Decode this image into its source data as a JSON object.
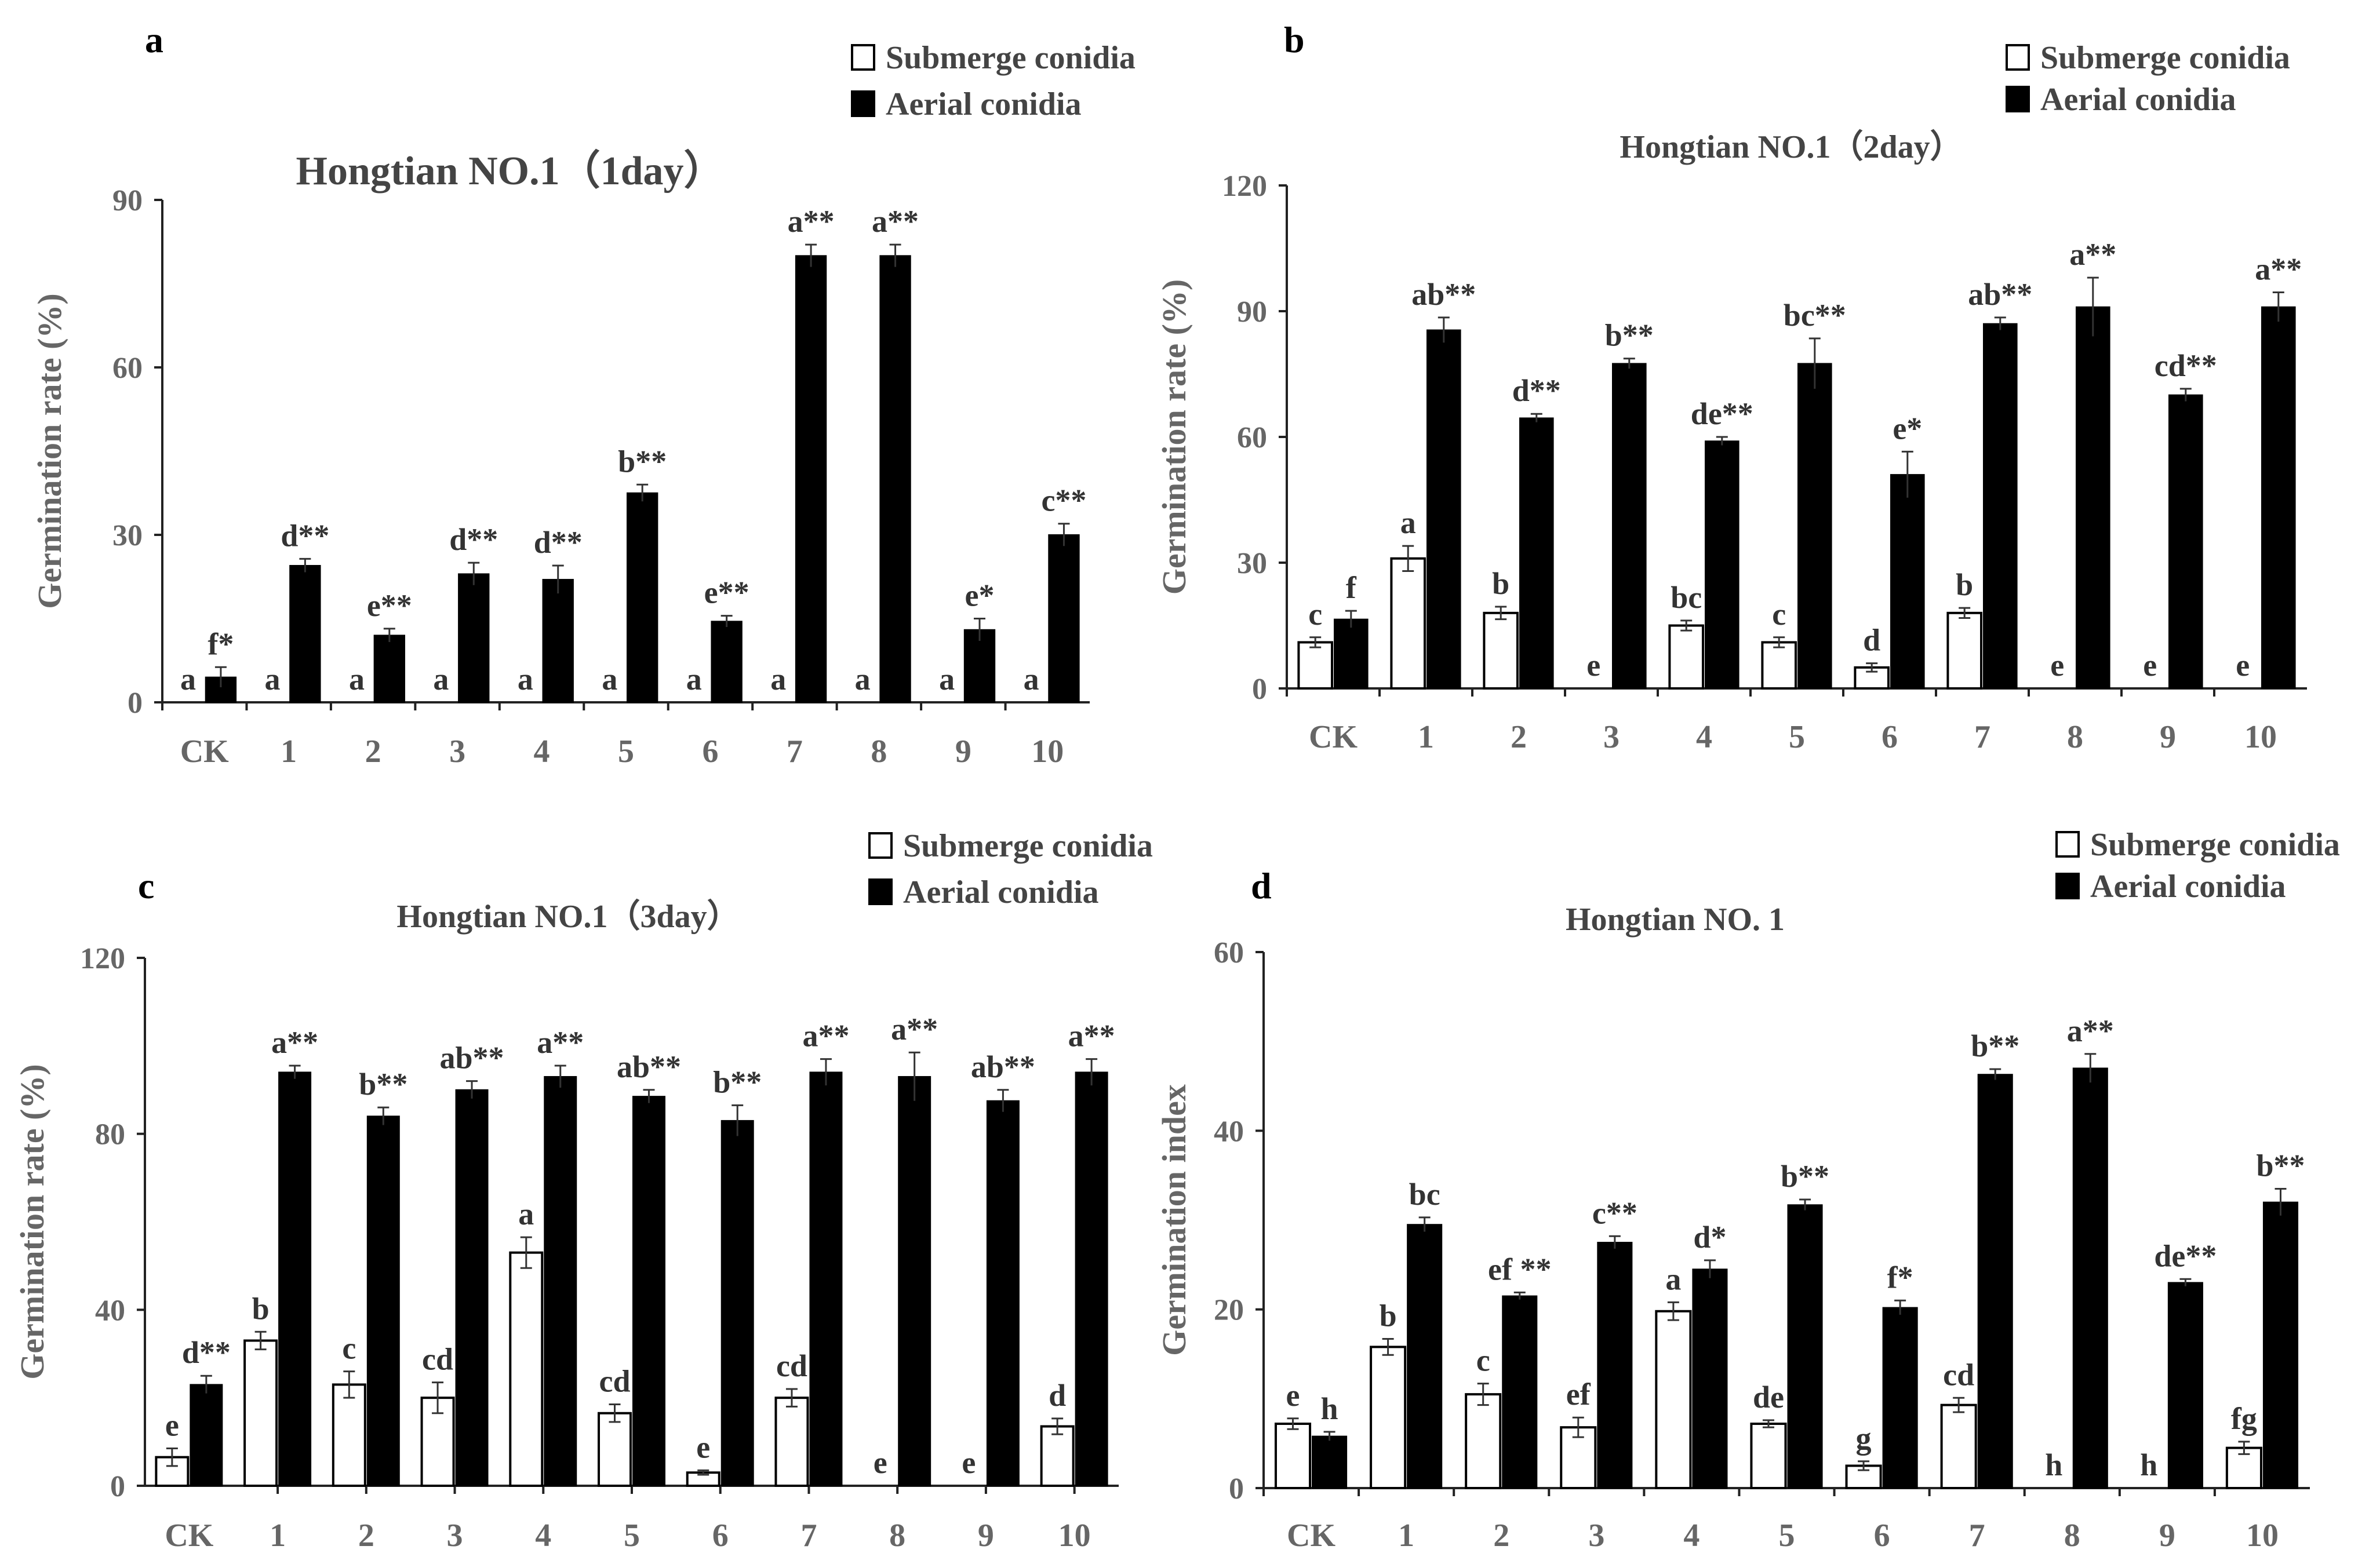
{
  "chart_data": [
    {
      "panel": "a",
      "type": "bar",
      "title": "Hongtian NO.1（1day）",
      "xlabel": "",
      "ylabel": "Germination rate (%)",
      "ylim": [
        0,
        90
      ],
      "yticks": [
        "0",
        "30",
        "60",
        "90"
      ],
      "ytick_values": [
        0,
        30,
        60,
        90
      ],
      "legend_position": "top-right",
      "categories": [
        "CK",
        "1",
        "2",
        "3",
        "4",
        "5",
        "6",
        "7",
        "8",
        "9",
        "10"
      ],
      "series": [
        {
          "name": "Submerge conidia",
          "color": "#ffffff",
          "values": [
            0,
            0,
            0,
            0,
            0,
            0,
            0,
            0,
            0,
            0,
            0
          ],
          "errors": [
            0,
            0,
            0,
            0,
            0,
            0,
            0,
            0,
            0,
            0,
            0
          ],
          "labels": [
            "a",
            "a",
            "a",
            "a",
            "a",
            "a",
            "a",
            "a",
            "a",
            "a",
            "a"
          ]
        },
        {
          "name": "Aerial conidia",
          "color": "#000000",
          "values": [
            4.5,
            24.5,
            12,
            23,
            22,
            37.5,
            14.5,
            80,
            80,
            13,
            30
          ],
          "errors": [
            1.8,
            1.2,
            1.2,
            2.0,
            2.5,
            1.5,
            1.0,
            2.0,
            2.0,
            2.0,
            2.0
          ],
          "labels": [
            "f*",
            "d**",
            "e**",
            "d**",
            "d**",
            "b**",
            "e**",
            "a**",
            "a**",
            "e*",
            "c**"
          ]
        }
      ]
    },
    {
      "panel": "b",
      "type": "bar",
      "title": "Hongtian NO.1（2day）",
      "xlabel": "",
      "ylabel": "Germination rate (%)",
      "ylim": [
        0,
        120
      ],
      "yticks": [
        "0",
        "30",
        "60",
        "90",
        "120"
      ],
      "ytick_values": [
        0,
        30,
        60,
        90,
        120
      ],
      "legend_position": "top-right",
      "categories": [
        "CK",
        "1",
        "2",
        "3",
        "4",
        "5",
        "6",
        "7",
        "8",
        "9",
        "10"
      ],
      "series": [
        {
          "name": "Submerge conidia",
          "color": "#ffffff",
          "values": [
            11,
            31,
            18,
            0,
            15,
            11,
            5,
            18,
            0,
            0,
            0
          ],
          "errors": [
            1.2,
            3.0,
            1.5,
            0,
            1.2,
            1.2,
            1.0,
            1.2,
            0,
            0,
            0
          ],
          "labels": [
            "c",
            "a",
            "b",
            "e",
            "bc",
            "c",
            "d",
            "b",
            "e",
            "e",
            "e"
          ]
        },
        {
          "name": "Aerial conidia",
          "color": "#000000",
          "values": [
            16.5,
            85.5,
            64.5,
            77.5,
            59,
            77.5,
            51,
            87,
            91,
            70,
            91
          ],
          "errors": [
            2.0,
            3.0,
            1.0,
            1.2,
            1.0,
            6.0,
            5.5,
            1.5,
            7.0,
            1.5,
            3.5
          ],
          "labels": [
            "f",
            "ab**",
            "d**",
            "b**",
            "de**",
            "bc**",
            "e*",
            "ab**",
            "a**",
            "cd**",
            "a**"
          ]
        }
      ]
    },
    {
      "panel": "c",
      "type": "bar",
      "title": "Hongtian NO.1（3day）",
      "xlabel": "",
      "ylabel": "Germination rate (%)",
      "ylim": [
        0,
        120
      ],
      "yticks": [
        "0",
        "40",
        "80",
        "120"
      ],
      "ytick_values": [
        0,
        40,
        80,
        120
      ],
      "legend_position": "top-right",
      "categories": [
        "CK",
        "1",
        "2",
        "3",
        "4",
        "5",
        "6",
        "7",
        "8",
        "9",
        "10"
      ],
      "series": [
        {
          "name": "Submerge conidia",
          "color": "#ffffff",
          "values": [
            6.5,
            33,
            23,
            20,
            53,
            16.5,
            3,
            20,
            0,
            0,
            13.5
          ],
          "errors": [
            2.0,
            2.0,
            3.0,
            3.5,
            3.5,
            2.0,
            0.5,
            2.0,
            0,
            0,
            1.8
          ],
          "labels": [
            "e",
            "b",
            "c",
            "cd",
            "a",
            "cd",
            "e",
            "cd",
            "e",
            "e",
            "d"
          ]
        },
        {
          "name": "Aerial conidia",
          "color": "#000000",
          "values": [
            23,
            94,
            84,
            90,
            93,
            88.5,
            83,
            94,
            93,
            87.5,
            94
          ],
          "errors": [
            2.0,
            1.5,
            2.0,
            2.0,
            2.5,
            1.5,
            3.5,
            3.0,
            5.5,
            2.5,
            3.0
          ],
          "labels": [
            "d**",
            "a**",
            "b**",
            "ab**",
            "a**",
            "ab**",
            "b**",
            "a**",
            "a**",
            "ab**",
            "a**"
          ]
        }
      ]
    },
    {
      "panel": "d",
      "type": "bar",
      "title": "Hongtian NO. 1",
      "xlabel": "",
      "ylabel": "Germination index",
      "ylim": [
        0,
        60
      ],
      "yticks": [
        "0",
        "20",
        "40",
        "60"
      ],
      "ytick_values": [
        0,
        20,
        40,
        60
      ],
      "legend_position": "top-right",
      "categories": [
        "CK",
        "1",
        "2",
        "3",
        "4",
        "5",
        "6",
        "7",
        "8",
        "9",
        "10"
      ],
      "series": [
        {
          "name": "Submerge conidia",
          "color": "#ffffff",
          "values": [
            7.2,
            15.8,
            10.5,
            6.8,
            19.8,
            7.2,
            2.5,
            9.3,
            0,
            0,
            4.5
          ],
          "errors": [
            0.6,
            0.9,
            1.2,
            1.1,
            1.0,
            0.4,
            0.5,
            0.8,
            0,
            0,
            0.7
          ],
          "labels": [
            "e",
            "b",
            "c",
            "ef",
            "a",
            "de",
            "g",
            "cd",
            "h",
            "h",
            "fg"
          ]
        },
        {
          "name": "Aerial conidia",
          "color": "#000000",
          "values": [
            5.8,
            29.5,
            21.5,
            27.5,
            24.5,
            31.7,
            20.2,
            46.3,
            47,
            23,
            32
          ],
          "errors": [
            0.5,
            0.8,
            0.4,
            0.7,
            1.0,
            0.6,
            0.8,
            0.6,
            1.6,
            0.4,
            1.5
          ],
          "labels": [
            "h",
            "bc",
            "ef **",
            "c**",
            "d*",
            "b**",
            "f*",
            "b**",
            "a**",
            "de**",
            "b**"
          ]
        }
      ]
    }
  ]
}
